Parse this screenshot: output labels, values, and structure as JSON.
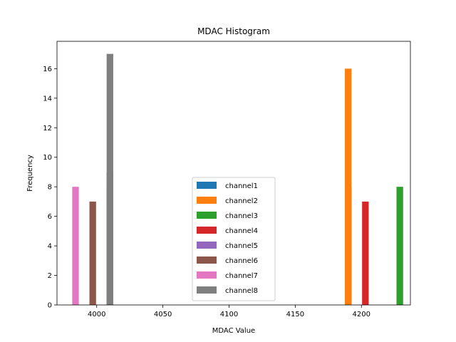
{
  "chart_data": {
    "type": "bar",
    "title": "MDAC Histogram",
    "xlabel": "MDAC Value",
    "ylabel": "Frequency",
    "xlim": [
      3970,
      4237
    ],
    "ylim": [
      0,
      17.85
    ],
    "xticks": [
      4000,
      4050,
      4100,
      4150,
      4200
    ],
    "yticks": [
      0,
      2,
      4,
      6,
      8,
      10,
      12,
      14,
      16
    ],
    "bar_width": 5,
    "legend_position": "lower center",
    "series": [
      {
        "name": "channel1",
        "color": "#1f77b4",
        "bars": [
          {
            "x": 4190,
            "value": 8
          }
        ]
      },
      {
        "name": "channel2",
        "color": "#ff7f0e",
        "bars": [
          {
            "x": 4190,
            "value": 16
          }
        ]
      },
      {
        "name": "channel3",
        "color": "#2ca02c",
        "bars": [
          {
            "x": 4229,
            "value": 8
          }
        ]
      },
      {
        "name": "channel4",
        "color": "#d62728",
        "bars": [
          {
            "x": 4203,
            "value": 7
          }
        ]
      },
      {
        "name": "channel5",
        "color": "#9467bd",
        "bars": [
          {
            "x": 4010,
            "value": 8
          }
        ]
      },
      {
        "name": "channel6",
        "color": "#8c564b",
        "bars": [
          {
            "x": 3997,
            "value": 7
          },
          {
            "x": 4010,
            "value": 9
          }
        ]
      },
      {
        "name": "channel7",
        "color": "#e377c2",
        "bars": [
          {
            "x": 3984,
            "value": 8
          }
        ]
      },
      {
        "name": "channel8",
        "color": "#7f7f7f",
        "bars": [
          {
            "x": 4010,
            "value": 17
          }
        ]
      }
    ]
  }
}
